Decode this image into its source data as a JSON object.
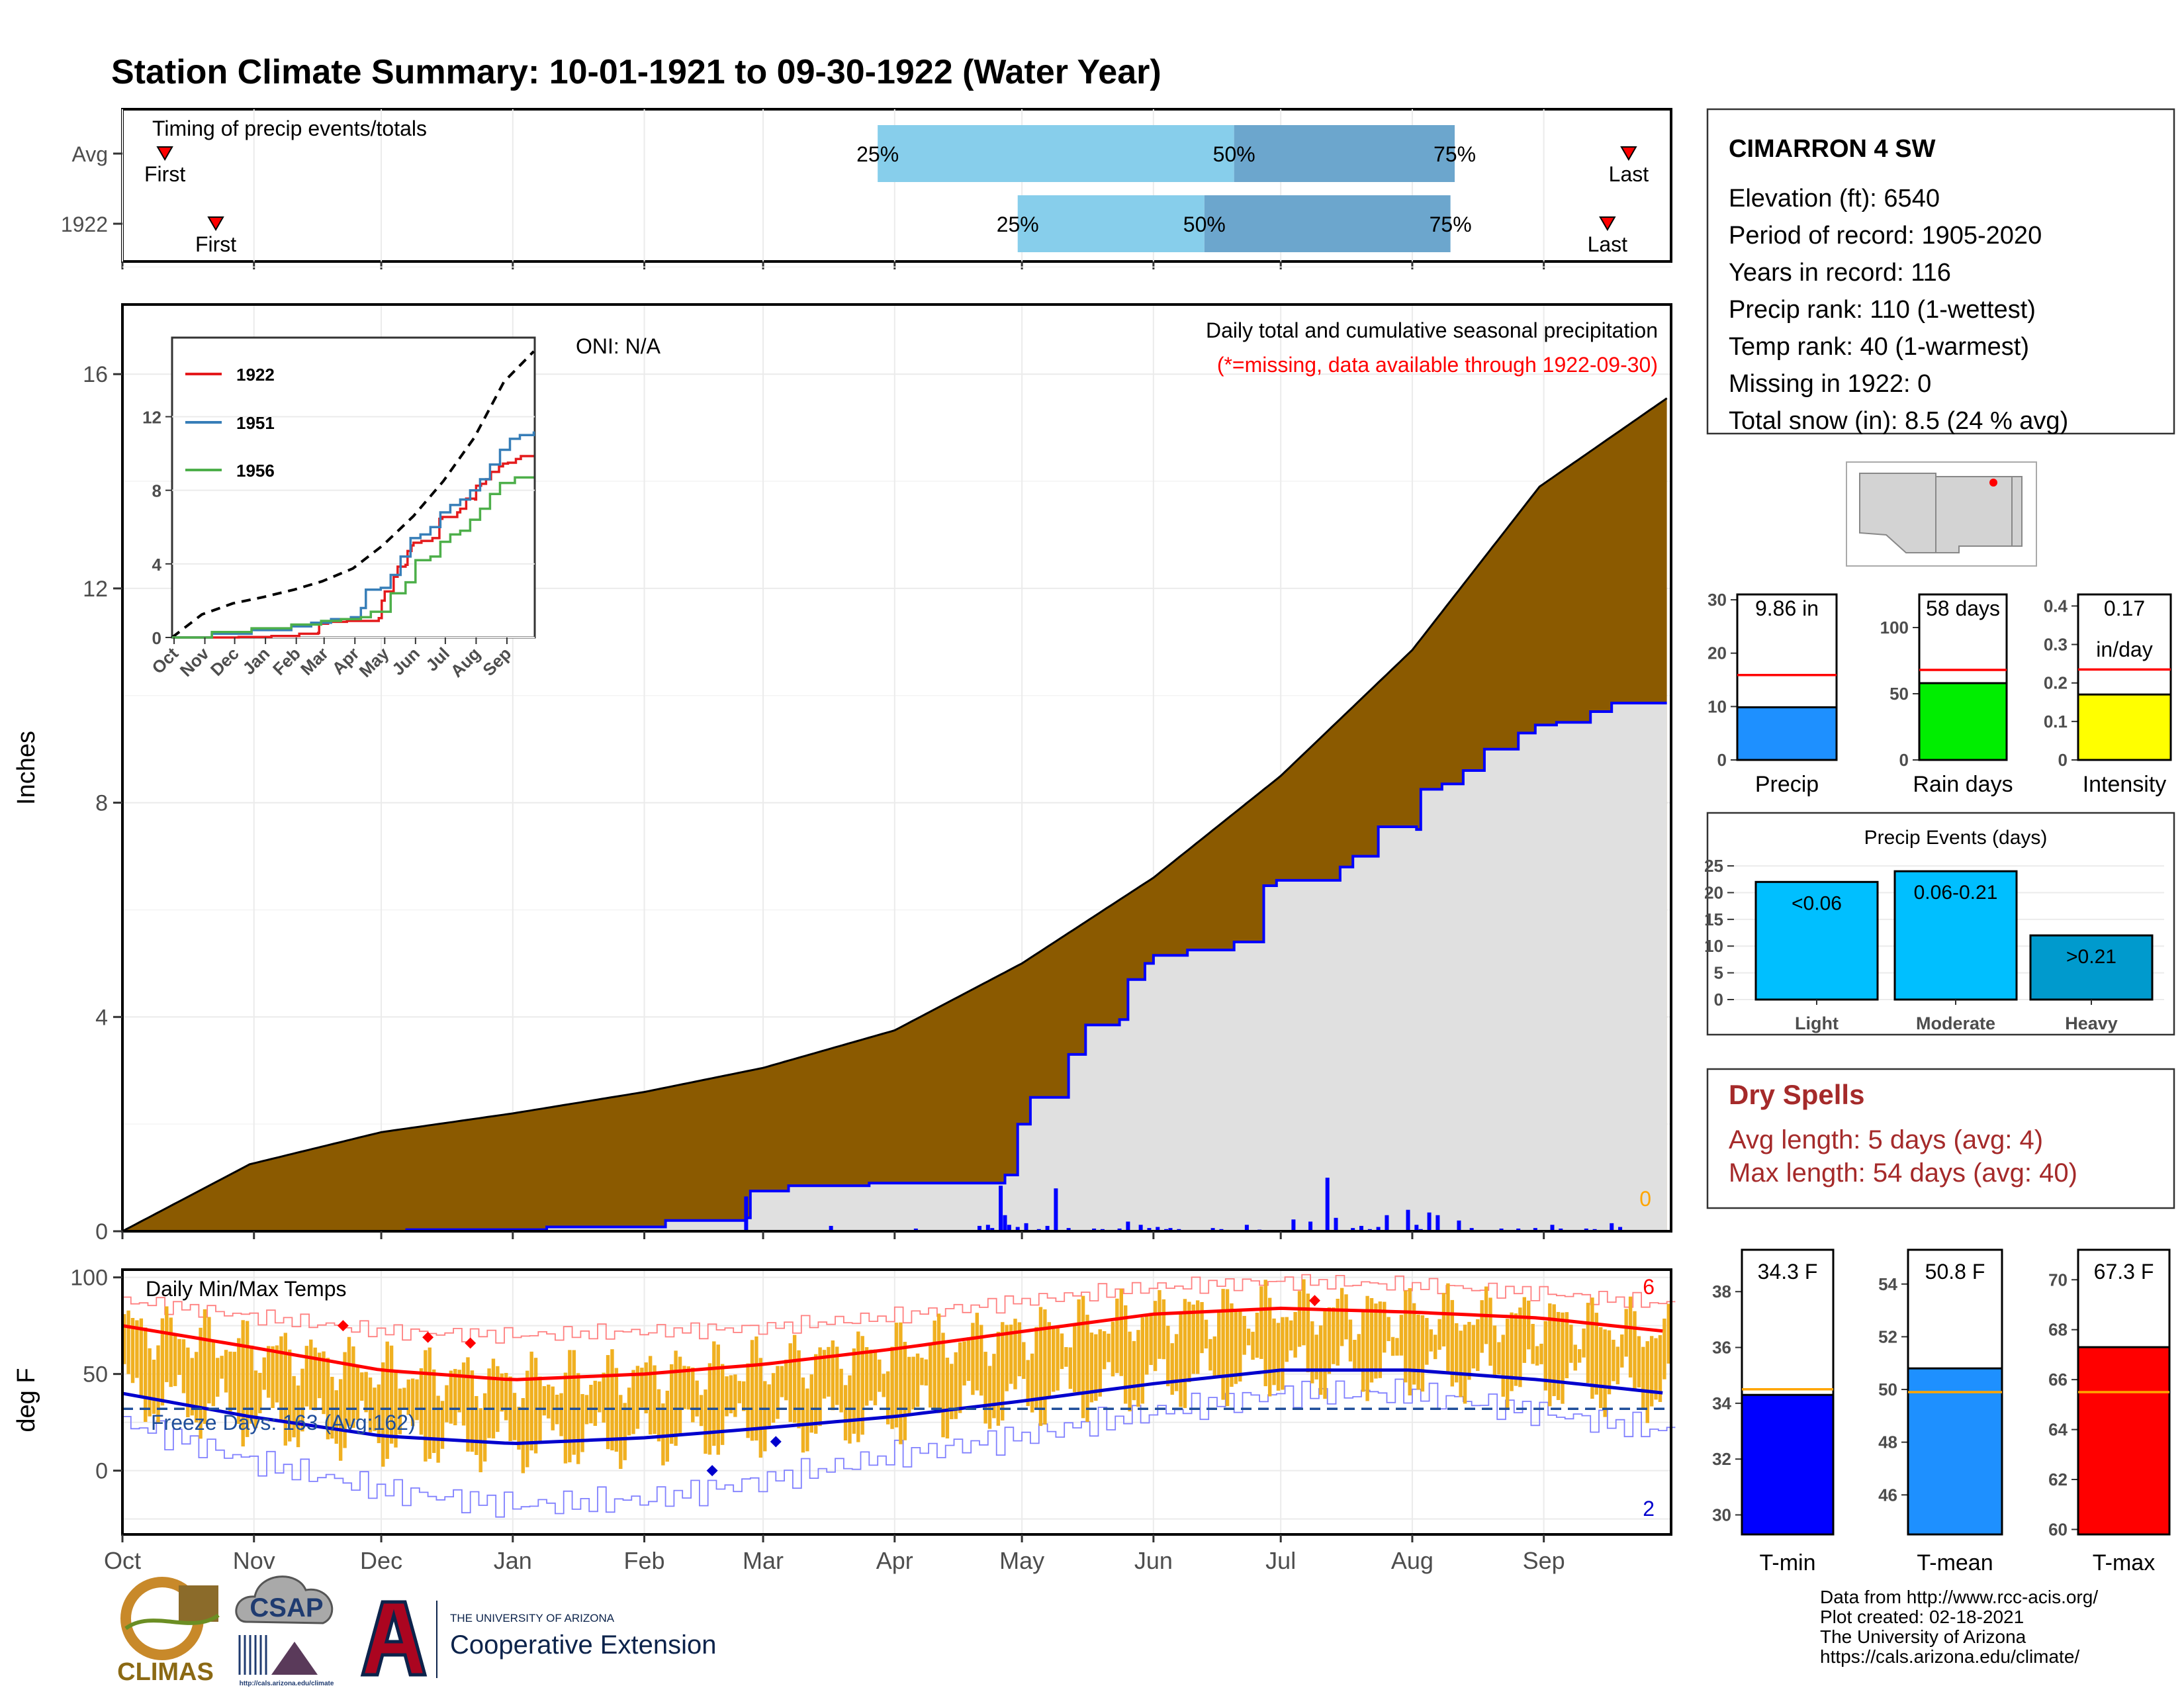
{
  "title": "Station Climate Summary: 10-01-1921 to 09-30-1922 (Water Year)",
  "colors": {
    "title": "#8B2500",
    "accumulated_avg": "#8B5A00",
    "obs_fill": "#E0E0E0",
    "obs_line": "#0000FF",
    "timing_light": "#87CEEB",
    "timing_dark": "#6CA6CD",
    "temp_bar": "#F0B020",
    "tmax_line": "#FF0000",
    "tmin_line": "#0000CD",
    "freeze_line": "#1F4E9A",
    "precip_bar": "#1E90FF",
    "raindays_bar": "#00EE00",
    "intensity_bar": "#FFFF00",
    "light_bar": "#00BFFF",
    "heavy_bar": "#009ACD",
    "tmin_bar": "#0000FF",
    "tmean_bar": "#1E90FF",
    "tmax_bar": "#FF0000",
    "dry_spell_text": "#A52A2A"
  },
  "months": [
    "Oct",
    "Nov",
    "Dec",
    "Jan",
    "Feb",
    "Mar",
    "Apr",
    "May",
    "Jun",
    "Jul",
    "Aug",
    "Sep"
  ],
  "timing": {
    "title": "Timing of precip events/totals",
    "rows": [
      {
        "label": "Avg",
        "first_label": "First",
        "last_label": "Last",
        "first_day": 10,
        "last_day": 355,
        "p25_day": 178,
        "p50_day": 262,
        "p75_day": 314,
        "p25_label": "25%",
        "p50_label": "50%",
        "p75_label": "75%"
      },
      {
        "label": "1922",
        "first_label": "First",
        "last_label": "Last",
        "first_day": 22,
        "last_day": 350,
        "p25_day": 211,
        "p50_day": 255,
        "p75_day": 313,
        "p25_label": "25%",
        "p50_label": "50%",
        "p75_label": "75%"
      }
    ]
  },
  "main": {
    "ylabel": "Inches",
    "oni": "ONI: N/A",
    "subtitle": "Daily total and cumulative seasonal precipitation",
    "missing_note": "(*=missing, data available through 1922-09-30)",
    "missing_count": "0"
  },
  "chart_data": [
    {
      "type": "area",
      "title": "Daily total and cumulative seasonal precipitation",
      "ylabel": "Inches",
      "x_unit": "day of water year",
      "ylim": [
        0,
        17.3
      ],
      "yticks": [
        0,
        4,
        8,
        12,
        16
      ],
      "xtick_labels": [
        "Oct",
        "Nov",
        "Dec",
        "Jan",
        "Feb",
        "Mar",
        "Apr",
        "May",
        "Jun",
        "Jul",
        "Aug",
        "Sep"
      ],
      "series": [
        {
          "name": "avg_cumulative",
          "x": [
            0,
            30,
            61,
            92,
            123,
            151,
            182,
            212,
            243,
            273,
            304,
            334,
            364
          ],
          "values": [
            0,
            1.25,
            1.85,
            2.2,
            2.6,
            3.05,
            3.75,
            5.0,
            6.6,
            8.5,
            10.85,
            13.9,
            15.55
          ]
        },
        {
          "name": "observed_cumulative",
          "x": [
            0,
            67,
            100,
            128,
            147,
            148,
            157,
            176,
            208,
            211,
            214,
            223,
            227,
            235,
            237,
            241,
            243,
            251,
            262,
            269,
            272,
            287,
            290,
            296,
            305,
            306,
            311,
            316,
            321,
            329,
            333,
            338,
            346,
            351,
            364
          ],
          "values": [
            0,
            0.03,
            0.08,
            0.2,
            0.25,
            0.75,
            0.85,
            0.9,
            1.05,
            2.0,
            2.5,
            3.3,
            3.85,
            3.95,
            4.7,
            5.0,
            5.15,
            5.25,
            5.4,
            6.45,
            6.55,
            6.8,
            7.0,
            7.55,
            7.5,
            8.25,
            8.35,
            8.6,
            9.0,
            9.3,
            9.45,
            9.5,
            9.7,
            9.86,
            9.86
          ]
        },
        {
          "name": "daily_precip",
          "x": [
            147,
            167,
            187,
            202,
            204,
            205,
            207,
            208,
            209,
            211,
            213,
            216,
            218,
            220,
            223,
            229,
            231,
            235,
            237,
            240,
            242,
            244,
            246,
            247,
            249,
            257,
            259,
            265,
            268,
            276,
            280,
            284,
            286,
            290,
            292,
            294,
            296,
            298,
            303,
            305,
            306,
            308,
            310,
            315,
            318,
            325,
            329,
            333,
            337,
            339,
            345,
            347,
            351,
            353
          ],
          "values": [
            0.65,
            0.1,
            0.05,
            0.1,
            0.12,
            0.06,
            0.85,
            0.3,
            0.12,
            0.08,
            0.15,
            0.04,
            0.1,
            0.8,
            0.06,
            0.05,
            0.04,
            0.05,
            0.18,
            0.12,
            0.06,
            0.08,
            0.04,
            0.06,
            0.04,
            0.06,
            0.04,
            0.12,
            0.03,
            0.22,
            0.18,
            1.0,
            0.25,
            0.06,
            0.1,
            0.04,
            0.08,
            0.3,
            0.4,
            0.12,
            0.04,
            0.35,
            0.3,
            0.2,
            0.06,
            0.05,
            0.05,
            0.06,
            0.12,
            0.05,
            0.05,
            0.04,
            0.15,
            0.08
          ]
        }
      ]
    },
    {
      "type": "line",
      "title": "inset",
      "ylim": [
        0,
        16.3
      ],
      "yticks": [
        0,
        4,
        8,
        12
      ],
      "xtick_labels": [
        "Oct",
        "Nov",
        "Dec",
        "Jan",
        "Feb",
        "Mar",
        "Apr",
        "May",
        "Jun",
        "Jul",
        "Aug",
        "Sep"
      ],
      "series": [
        {
          "name": "avg",
          "x": [
            0,
            30,
            61,
            92,
            123,
            151,
            182,
            212,
            243,
            273,
            304,
            334,
            364
          ],
          "values": [
            0,
            1.25,
            1.85,
            2.2,
            2.6,
            3.05,
            3.75,
            5.0,
            6.6,
            8.5,
            10.85,
            13.9,
            15.55
          ]
        },
        {
          "name": "1922",
          "x": [
            0,
            67,
            100,
            128,
            147,
            148,
            157,
            176,
            208,
            211,
            214,
            223,
            227,
            235,
            237,
            241,
            243,
            251,
            262,
            269,
            272,
            287,
            290,
            296,
            305,
            306,
            311,
            316,
            321,
            329,
            333,
            338,
            346,
            351,
            364
          ],
          "values": [
            0,
            0.03,
            0.08,
            0.2,
            0.25,
            0.75,
            0.85,
            0.9,
            1.05,
            2.0,
            2.5,
            3.3,
            3.85,
            3.95,
            4.7,
            5.0,
            5.15,
            5.25,
            5.4,
            6.45,
            6.55,
            6.8,
            7.0,
            7.55,
            7.5,
            8.25,
            8.35,
            8.6,
            9.0,
            9.3,
            9.45,
            9.5,
            9.7,
            9.86,
            9.86
          ]
        },
        {
          "name": "1951",
          "x": [
            0,
            40,
            80,
            120,
            140,
            160,
            180,
            190,
            195,
            210,
            220,
            230,
            240,
            250,
            260,
            270,
            280,
            290,
            300,
            310,
            320,
            330,
            340,
            350,
            364
          ],
          "values": [
            0,
            0.2,
            0.4,
            0.6,
            0.8,
            1.0,
            1.1,
            1.6,
            2.6,
            2.7,
            3.4,
            4.4,
            5.4,
            5.6,
            6.0,
            6.8,
            7.2,
            7.5,
            8.0,
            8.6,
            9.4,
            10.2,
            10.8,
            11.0,
            11.2
          ]
        },
        {
          "name": "1956",
          "x": [
            0,
            40,
            80,
            120,
            150,
            170,
            190,
            200,
            220,
            235,
            245,
            260,
            270,
            280,
            290,
            300,
            310,
            320,
            330,
            345,
            364
          ],
          "values": [
            0,
            0.3,
            0.5,
            0.7,
            0.9,
            1.0,
            1.1,
            1.4,
            2.4,
            3.0,
            4.2,
            4.4,
            5.2,
            5.6,
            5.8,
            6.4,
            7.0,
            7.8,
            8.4,
            8.7,
            8.7
          ]
        }
      ]
    },
    {
      "type": "bar",
      "title": "Daily Min/Max Temps",
      "ylabel": "deg F",
      "ylim": [
        -33,
        104
      ],
      "yticks": [
        0,
        50,
        100
      ],
      "xtick_labels": [
        "Oct",
        "Nov",
        "Dec",
        "Jan",
        "Feb",
        "Mar",
        "Apr",
        "May",
        "Jun",
        "Jul",
        "Aug",
        "Sep"
      ],
      "freeze_threshold": 32,
      "tmax_normal": {
        "x": [
          0,
          30,
          61,
          92,
          123,
          151,
          182,
          212,
          243,
          273,
          304,
          334,
          364
        ],
        "values": [
          75,
          64,
          52,
          47,
          50,
          55,
          63,
          72,
          81,
          84,
          82,
          79,
          72
        ]
      },
      "tmin_normal": {
        "x": [
          0,
          30,
          61,
          92,
          123,
          151,
          182,
          212,
          243,
          273,
          304,
          334,
          364
        ],
        "values": [
          40,
          28,
          18,
          14,
          17,
          22,
          28,
          36,
          45,
          52,
          52,
          47,
          40
        ]
      },
      "tmax_record": {
        "x": [
          0,
          30,
          61,
          92,
          123,
          151,
          182,
          212,
          243,
          273,
          304,
          334,
          364
        ],
        "values": [
          88,
          80,
          72,
          70,
          72,
          74,
          80,
          88,
          95,
          98,
          96,
          92,
          86
        ]
      },
      "tmin_record": {
        "x": [
          0,
          30,
          61,
          92,
          123,
          151,
          182,
          212,
          243,
          273,
          304,
          334,
          364
        ],
        "values": [
          25,
          5,
          -10,
          -18,
          -15,
          -5,
          8,
          18,
          30,
          40,
          40,
          30,
          20
        ]
      }
    }
  ],
  "temp": {
    "title": "Daily Min/Max Temps",
    "ylabel": "deg F",
    "freeze_label": "Freeze Days: 163 (Avg:162)",
    "record_high_count": "6",
    "record_low_count": "2"
  },
  "station": {
    "name": "CIMARRON 4 SW",
    "lines": [
      "Elevation (ft): 6540",
      "Period of record: 1905-2020",
      "Years in record: 116",
      "Precip rank: 110 (1-wettest)",
      "Temp rank: 40 (1-warmest)",
      "Missing in 1922: 0",
      "Total snow (in): 8.5 (24 % avg)"
    ]
  },
  "precip_summary": [
    {
      "name": "Precip",
      "label": "9.86 in",
      "value": 9.86,
      "avg": 15.9,
      "ymax": 31,
      "ticks": [
        0,
        10,
        20,
        30
      ]
    },
    {
      "name": "Rain days",
      "label": "58 days",
      "value": 58,
      "avg": 68,
      "ymax": 125,
      "ticks": [
        0,
        50,
        100
      ]
    },
    {
      "name": "Intensity",
      "label": "0.17",
      "label2": "in/day",
      "value": 0.17,
      "avg": 0.235,
      "ymax": 0.43,
      "ticks": [
        0.0,
        0.1,
        0.2,
        0.3,
        0.4
      ]
    }
  ],
  "events": {
    "title": "Precip Events (days)",
    "ticks": [
      0,
      5,
      10,
      15,
      20,
      25
    ],
    "bars": [
      {
        "category": "Light",
        "label": "<0.06",
        "value": 22
      },
      {
        "category": "Moderate",
        "label": "0.06-0.21",
        "value": 24
      },
      {
        "category": "Heavy",
        "label": ">0.21",
        "value": 12
      }
    ]
  },
  "dry_spells": {
    "title": "Dry Spells",
    "avg_line": "Avg length: 5 days (avg: 4)",
    "max_line": "Max length: 54 days (avg: 40)"
  },
  "temp_summary": [
    {
      "name": "T-min",
      "label": "34.3 F",
      "value": 34.3,
      "avg": 34.5,
      "ymin": 29.3,
      "ymax": 39.5,
      "ticks": [
        30,
        32,
        34,
        36,
        38
      ]
    },
    {
      "name": "T-mean",
      "label": "50.8 F",
      "value": 50.8,
      "avg": 49.9,
      "ymin": 44.5,
      "ymax": 55.3,
      "ticks": [
        46,
        48,
        50,
        52,
        54
      ]
    },
    {
      "name": "T-max",
      "label": "67.3 F",
      "value": 67.3,
      "avg": 65.5,
      "ymin": 59.8,
      "ymax": 71.2,
      "ticks": [
        60,
        62,
        64,
        66,
        68,
        70
      ]
    }
  ],
  "logos": {
    "climas": "CLIMAS",
    "csap": "CSAP",
    "csap_url": "http://cals.arizona.edu/climate",
    "ua_small": "THE UNIVERSITY OF ARIZONA",
    "ua_big": "Cooperative Extension"
  },
  "footer": [
    "Data from http://www.rcc-acis.org/",
    "Plot created: 02-18-2021",
    "The University of Arizona",
    "https://cals.arizona.edu/climate/"
  ]
}
